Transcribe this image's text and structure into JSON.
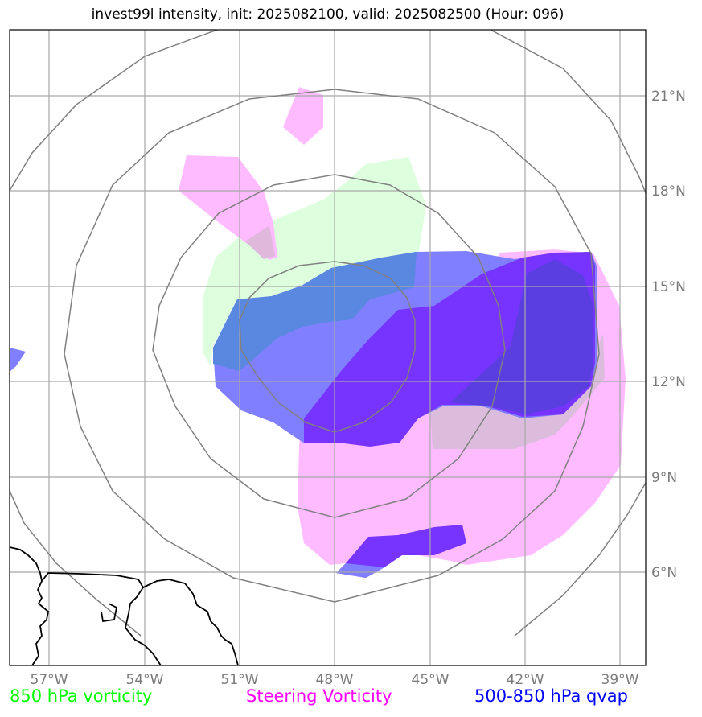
{
  "title": "invest99l intensity, init: 2025082100, valid: 2025082500 (Hour: 096)",
  "map": {
    "lon_ticks": [
      "57°W",
      "54°W",
      "51°W",
      "48°W",
      "45°W",
      "42°W",
      "39°W"
    ],
    "lat_ticks": [
      "21°N",
      "18°N",
      "15°N",
      "12°N",
      "9°N",
      "6°N"
    ],
    "lon_range": [
      -58.2,
      -38.2
    ],
    "lat_range": [
      3.0,
      23.0
    ],
    "center": {
      "lon": -48.0,
      "lat": 13.0
    },
    "range_ring_color": "#808080",
    "grid_color": "#a0a0a0"
  },
  "legend": [
    {
      "label": "850 hPa vorticity",
      "color": "#00ff00"
    },
    {
      "label": "Steering Vorticity",
      "color": "#ff00ff"
    },
    {
      "label": "500-850 hPa qvap",
      "color": "#0000ff"
    }
  ],
  "layers": {
    "vorticity_850": {
      "color": "#ddffdd"
    },
    "steering_vorticity": {
      "color": "#ffbbff"
    },
    "qvap_light": {
      "color": "#7f7fff"
    },
    "qvap_dark": {
      "color": "#7733ff"
    }
  }
}
